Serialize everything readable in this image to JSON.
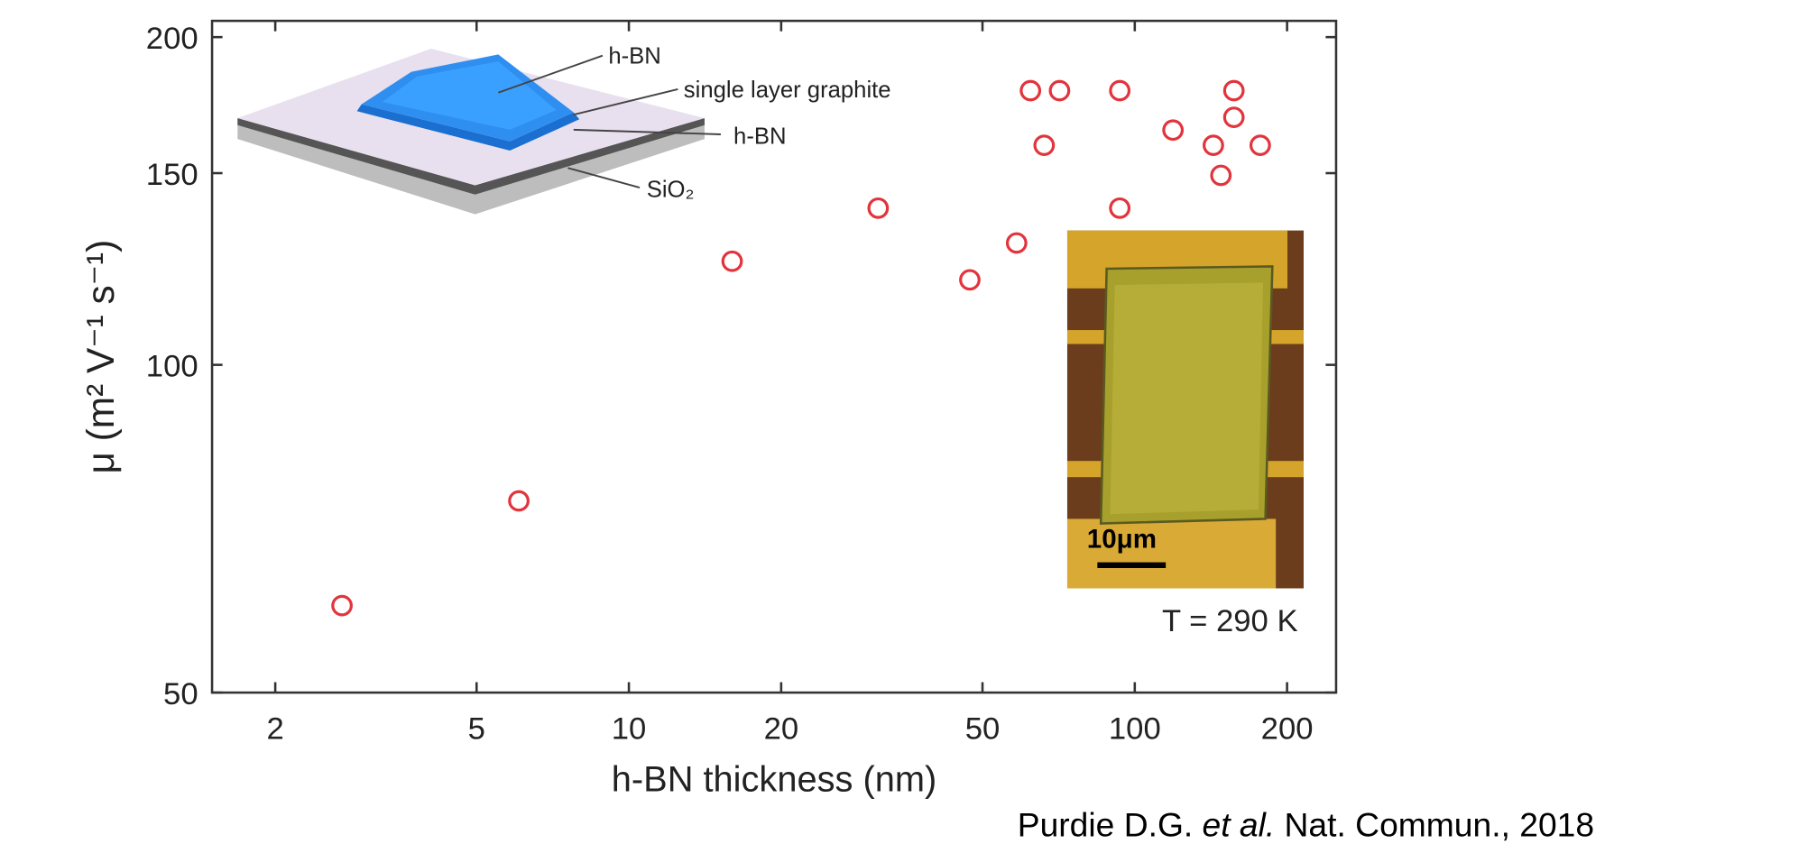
{
  "chart_data": {
    "type": "scatter",
    "x_label": "h-BN thickness (nm)",
    "y_label": "μ (m² V⁻¹ s⁻¹)",
    "xscale": "log",
    "yscale": "log",
    "xlim": [
      1.5,
      250
    ],
    "ylim": [
      50,
      207
    ],
    "xticks": [
      2,
      5,
      10,
      20,
      50,
      100,
      200
    ],
    "yticks": [
      50,
      100,
      150,
      200
    ],
    "color": "#e2343c",
    "x": [
      2.71,
      6.06,
      16.0,
      31.1,
      47.2,
      58.4,
      62.2,
      71.0,
      66.2,
      93.4,
      93.4,
      119,
      143,
      148,
      157,
      157,
      177
    ],
    "values": [
      60.1,
      75,
      124.5,
      139.3,
      119.7,
      129.4,
      178.6,
      178.6,
      159.1,
      178.6,
      139.3,
      164.3,
      159.1,
      149.3,
      168.8,
      178.6,
      159.1
    ],
    "annotation": "T = 290 K",
    "inset_labels": [
      "h-BN",
      "single layer graphite",
      "h-BN",
      "SiO₂"
    ],
    "scale_bar": "10μm"
  },
  "citation": {
    "authors": "Purdie D.G.",
    "etal": "et al.",
    "journal": "Nat. Commun., 2018"
  }
}
